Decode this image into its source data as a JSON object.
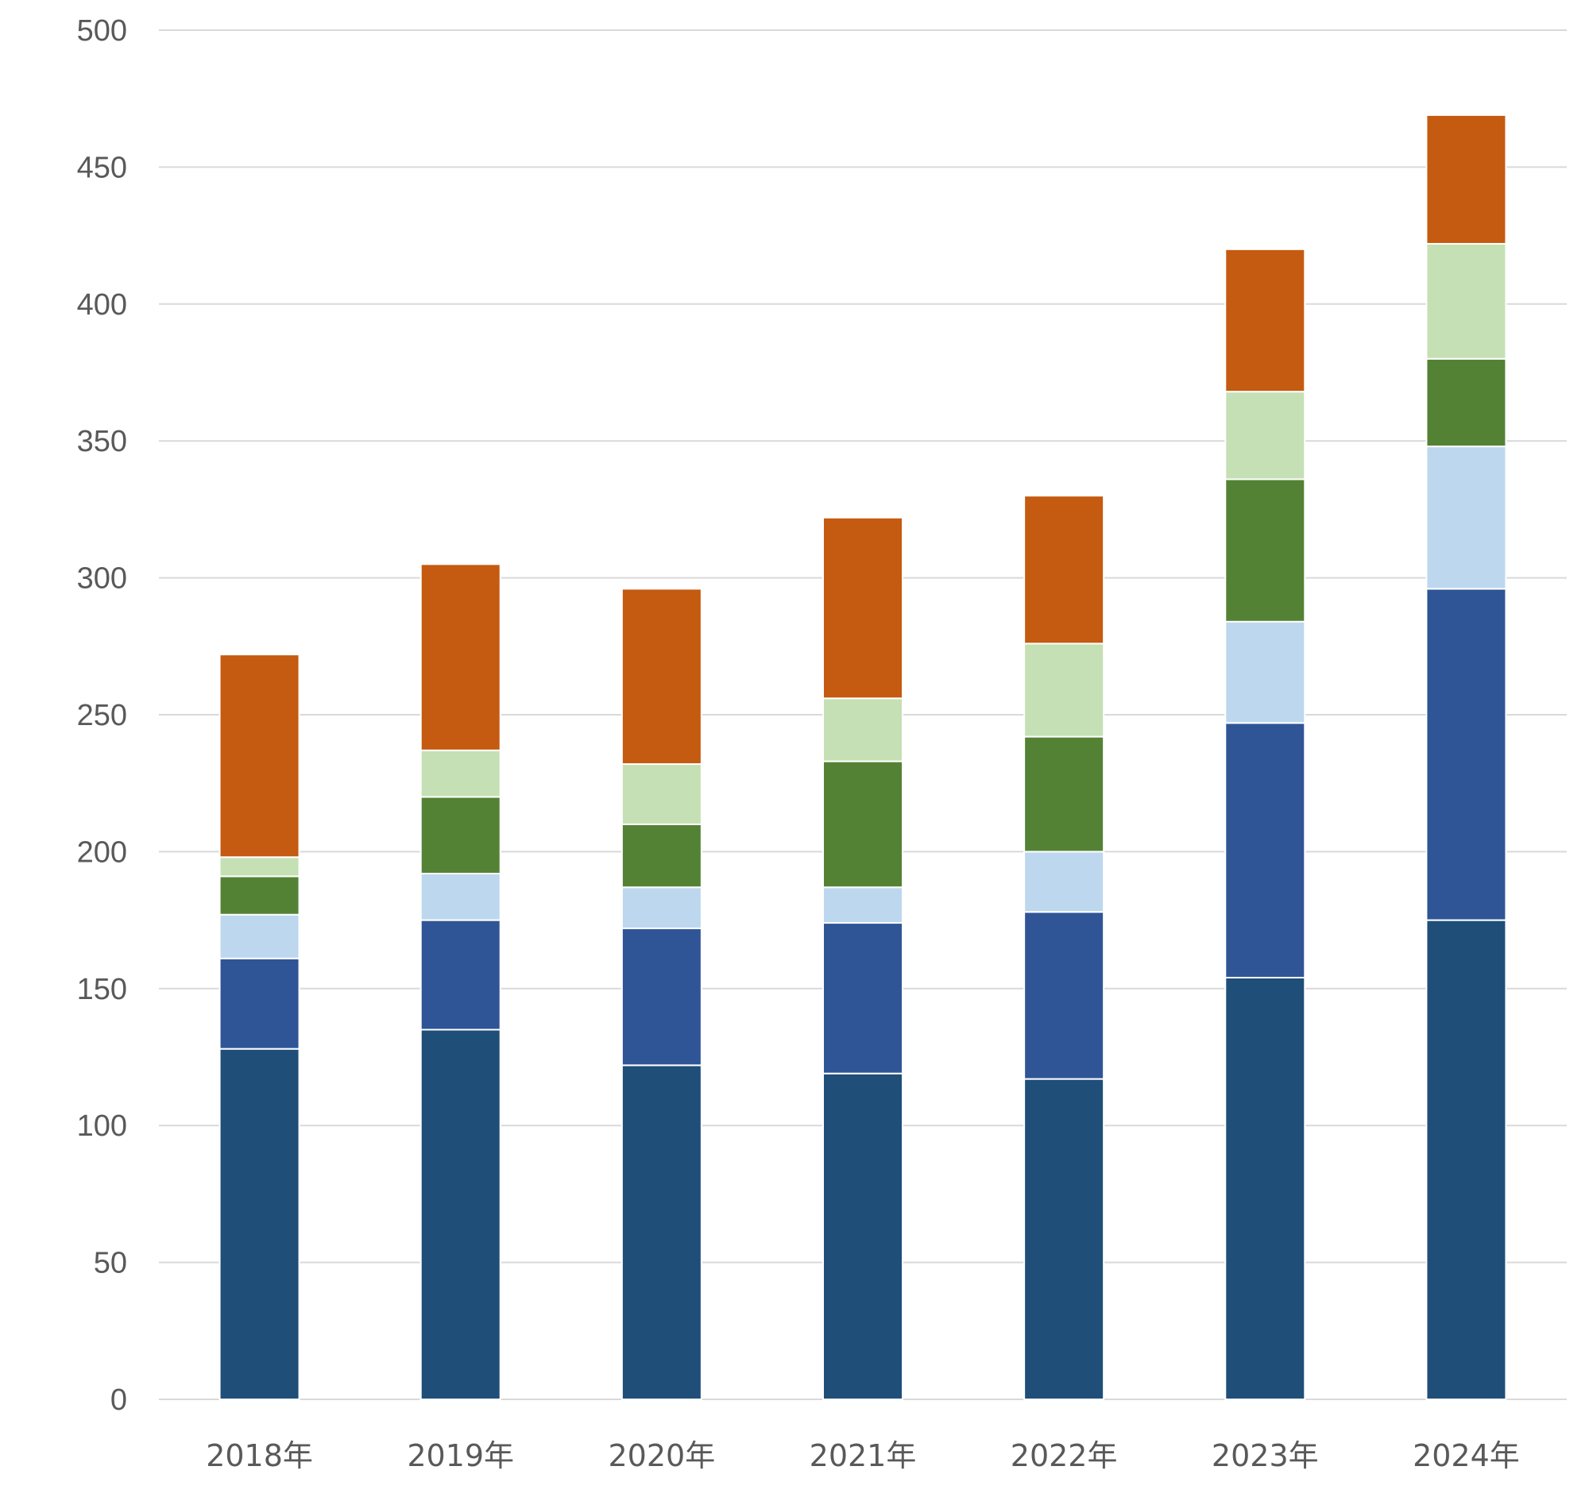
{
  "chart_data": {
    "type": "bar",
    "stacked": true,
    "title": "",
    "xlabel": "",
    "ylabel": "",
    "ylim": [
      0,
      500
    ],
    "yticks": [
      0,
      50,
      100,
      150,
      200,
      250,
      300,
      350,
      400,
      450,
      500
    ],
    "grid": true,
    "legend": "none",
    "categories": [
      "2018年",
      "2019年",
      "2020年",
      "2021年",
      "2022年",
      "2023年",
      "2024年"
    ],
    "series": [
      {
        "color": "#1f4e79",
        "values": [
          128,
          135,
          122,
          119,
          117,
          154,
          175
        ]
      },
      {
        "color": "#2f5597",
        "values": [
          33,
          40,
          50,
          55,
          61,
          93,
          121
        ]
      },
      {
        "color": "#bdd7ee",
        "values": [
          16,
          17,
          15,
          13,
          22,
          37,
          52
        ]
      },
      {
        "color": "#548235",
        "values": [
          14,
          28,
          23,
          46,
          42,
          52,
          32
        ]
      },
      {
        "color": "#c5e0b4",
        "values": [
          7,
          17,
          22,
          23,
          34,
          32,
          42
        ]
      },
      {
        "color": "#c55a11",
        "values": [
          74,
          68,
          64,
          66,
          54,
          52,
          47
        ]
      }
    ],
    "colors": {
      "gridline": "#d9d9d9",
      "tick_text": "#595959",
      "background": "#ffffff"
    }
  }
}
